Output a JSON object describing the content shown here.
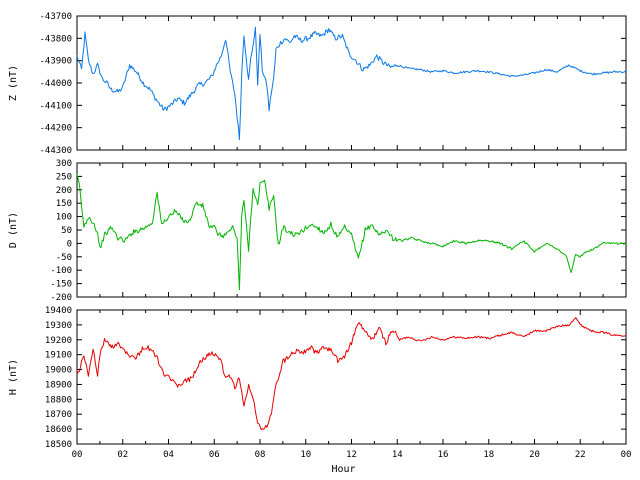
{
  "chart_data": [
    {
      "type": "line",
      "ylabel": "Z (nT)",
      "ylim": [
        -44300,
        -43700
      ],
      "yticks": [
        -43700,
        -43800,
        -43900,
        -44000,
        -44100,
        -44200,
        -44300
      ],
      "xlim": [
        0,
        24
      ],
      "color": "#0a78e6",
      "series": [
        {
          "x": [
            0,
            0.2,
            0.35,
            0.5,
            0.7,
            0.9,
            1.1,
            1.3,
            1.5,
            1.8,
            2.0,
            2.3,
            2.6,
            2.9,
            3.2,
            3.5,
            3.8,
            4.1,
            4.4,
            4.7,
            5.0,
            5.3,
            5.6,
            5.9,
            6.1,
            6.3,
            6.5,
            6.7,
            6.9,
            7.0,
            7.1,
            7.2,
            7.3,
            7.5,
            7.6,
            7.8,
            7.9,
            8.0,
            8.1,
            8.3,
            8.4,
            8.5,
            8.6,
            8.7,
            8.9,
            9.1,
            9.3,
            9.5,
            9.8,
            10.1,
            10.4,
            10.7,
            11.0,
            11.3,
            11.6,
            11.9,
            12.2,
            12.5,
            12.8,
            13.1,
            13.4,
            13.7,
            14.0,
            14.5,
            15.0,
            15.5,
            16.0,
            16.5,
            17.0,
            17.5,
            18.0,
            18.5,
            19.0,
            19.5,
            20.0,
            20.5,
            21.0,
            21.5,
            22.0,
            22.5,
            23.0,
            23.5,
            24.0
          ],
          "y": [
            -43880,
            -43940,
            -43780,
            -43900,
            -43960,
            -43920,
            -43980,
            -44000,
            -44030,
            -44040,
            -44020,
            -43920,
            -43950,
            -44000,
            -44030,
            -44080,
            -44120,
            -44100,
            -44070,
            -44090,
            -44050,
            -44010,
            -44000,
            -43970,
            -43920,
            -43880,
            -43800,
            -43950,
            -44050,
            -44150,
            -44250,
            -43960,
            -43780,
            -43990,
            -43890,
            -43760,
            -44000,
            -43780,
            -43940,
            -44010,
            -44120,
            -44040,
            -43980,
            -43850,
            -43820,
            -43800,
            -43820,
            -43790,
            -43810,
            -43800,
            -43780,
            -43790,
            -43760,
            -43800,
            -43790,
            -43870,
            -43900,
            -43940,
            -43920,
            -43880,
            -43910,
            -43930,
            -43920,
            -43935,
            -43940,
            -43950,
            -43945,
            -43955,
            -43950,
            -43945,
            -43950,
            -43960,
            -43970,
            -43965,
            -43955,
            -43940,
            -43950,
            -43920,
            -43945,
            -43960,
            -43955,
            -43950,
            -43950
          ]
        }
      ]
    },
    {
      "type": "line",
      "ylabel": "D (nT)",
      "ylim": [
        -200,
        300
      ],
      "yticks": [
        300,
        250,
        200,
        150,
        100,
        50,
        0,
        -50,
        -100,
        -150,
        -200
      ],
      "xlim": [
        0,
        24
      ],
      "color": "#00b400",
      "series": [
        {
          "x": [
            0,
            0.1,
            0.3,
            0.5,
            0.7,
            0.9,
            1.0,
            1.2,
            1.5,
            1.8,
            2.1,
            2.4,
            2.7,
            3.0,
            3.3,
            3.5,
            3.7,
            4.0,
            4.3,
            4.6,
            4.9,
            5.2,
            5.5,
            5.8,
            6.0,
            6.2,
            6.4,
            6.6,
            6.8,
            7.0,
            7.1,
            7.2,
            7.3,
            7.5,
            7.7,
            7.9,
            8.0,
            8.2,
            8.4,
            8.6,
            8.8,
            9.0,
            9.3,
            9.6,
            9.9,
            10.2,
            10.5,
            10.8,
            11.1,
            11.4,
            11.7,
            12.0,
            12.3,
            12.6,
            12.9,
            13.2,
            13.5,
            13.8,
            14.2,
            14.6,
            15.0,
            15.5,
            16.0,
            16.5,
            17.0,
            17.5,
            18.0,
            18.5,
            19.0,
            19.5,
            20.0,
            20.5,
            21.0,
            21.4,
            21.6,
            21.8,
            22.0,
            22.3,
            22.6,
            23.0,
            23.5,
            24.0
          ],
          "y": [
            250,
            220,
            60,
            100,
            80,
            40,
            -20,
            30,
            60,
            20,
            10,
            40,
            50,
            60,
            80,
            190,
            70,
            100,
            120,
            90,
            80,
            150,
            140,
            60,
            60,
            30,
            30,
            40,
            60,
            20,
            -170,
            100,
            160,
            -20,
            210,
            140,
            220,
            230,
            130,
            180,
            -10,
            60,
            40,
            30,
            50,
            70,
            60,
            40,
            70,
            20,
            60,
            30,
            -60,
            50,
            70,
            30,
            50,
            20,
            10,
            20,
            10,
            0,
            -10,
            10,
            0,
            10,
            10,
            0,
            -20,
            10,
            -30,
            0,
            -20,
            -50,
            -110,
            -40,
            -50,
            -30,
            -20,
            0,
            0,
            0
          ]
        }
      ]
    },
    {
      "type": "line",
      "ylabel": "H (nT)",
      "ylim": [
        18500,
        19400
      ],
      "yticks": [
        19400,
        19300,
        19200,
        19100,
        19000,
        18900,
        18800,
        18700,
        18600,
        18500
      ],
      "xlim": [
        0,
        24
      ],
      "xticks": [
        "00",
        "02",
        "04",
        "06",
        "08",
        "10",
        "12",
        "14",
        "16",
        "18",
        "20",
        "22",
        "00"
      ],
      "xlabel": "Hour",
      "color": "#e60000",
      "series": [
        {
          "x": [
            0,
            0.1,
            0.3,
            0.5,
            0.7,
            0.9,
            1.0,
            1.2,
            1.5,
            1.8,
            2.0,
            2.3,
            2.6,
            2.9,
            3.2,
            3.5,
            3.8,
            4.1,
            4.4,
            4.7,
            5.0,
            5.3,
            5.6,
            5.9,
            6.1,
            6.3,
            6.5,
            6.7,
            6.9,
            7.1,
            7.3,
            7.5,
            7.7,
            7.9,
            8.1,
            8.3,
            8.5,
            8.7,
            9.0,
            9.3,
            9.6,
            9.9,
            10.2,
            10.5,
            10.8,
            11.1,
            11.4,
            11.7,
            12.0,
            12.3,
            12.6,
            12.9,
            13.2,
            13.5,
            13.8,
            14.1,
            14.5,
            15.0,
            15.5,
            16.0,
            16.5,
            17.0,
            17.5,
            18.0,
            18.5,
            19.0,
            19.5,
            20.0,
            20.5,
            21.0,
            21.5,
            21.8,
            22.0,
            22.5,
            23.0,
            23.5,
            24.0
          ],
          "y": [
            18980,
            19000,
            19100,
            18950,
            19150,
            18950,
            19100,
            19200,
            19150,
            19180,
            19140,
            19100,
            19080,
            19150,
            19140,
            19080,
            18960,
            18940,
            18880,
            18920,
            18940,
            19030,
            19080,
            19120,
            19080,
            19050,
            18940,
            18960,
            18880,
            18950,
            18750,
            18890,
            18800,
            18650,
            18590,
            18620,
            18700,
            18900,
            19050,
            19100,
            19130,
            19120,
            19150,
            19110,
            19150,
            19130,
            19060,
            19090,
            19180,
            19320,
            19250,
            19200,
            19280,
            19180,
            19270,
            19200,
            19220,
            19190,
            19220,
            19200,
            19220,
            19210,
            19220,
            19210,
            19230,
            19250,
            19220,
            19260,
            19260,
            19290,
            19300,
            19350,
            19300,
            19260,
            19250,
            19230,
            19230
          ]
        }
      ]
    }
  ]
}
